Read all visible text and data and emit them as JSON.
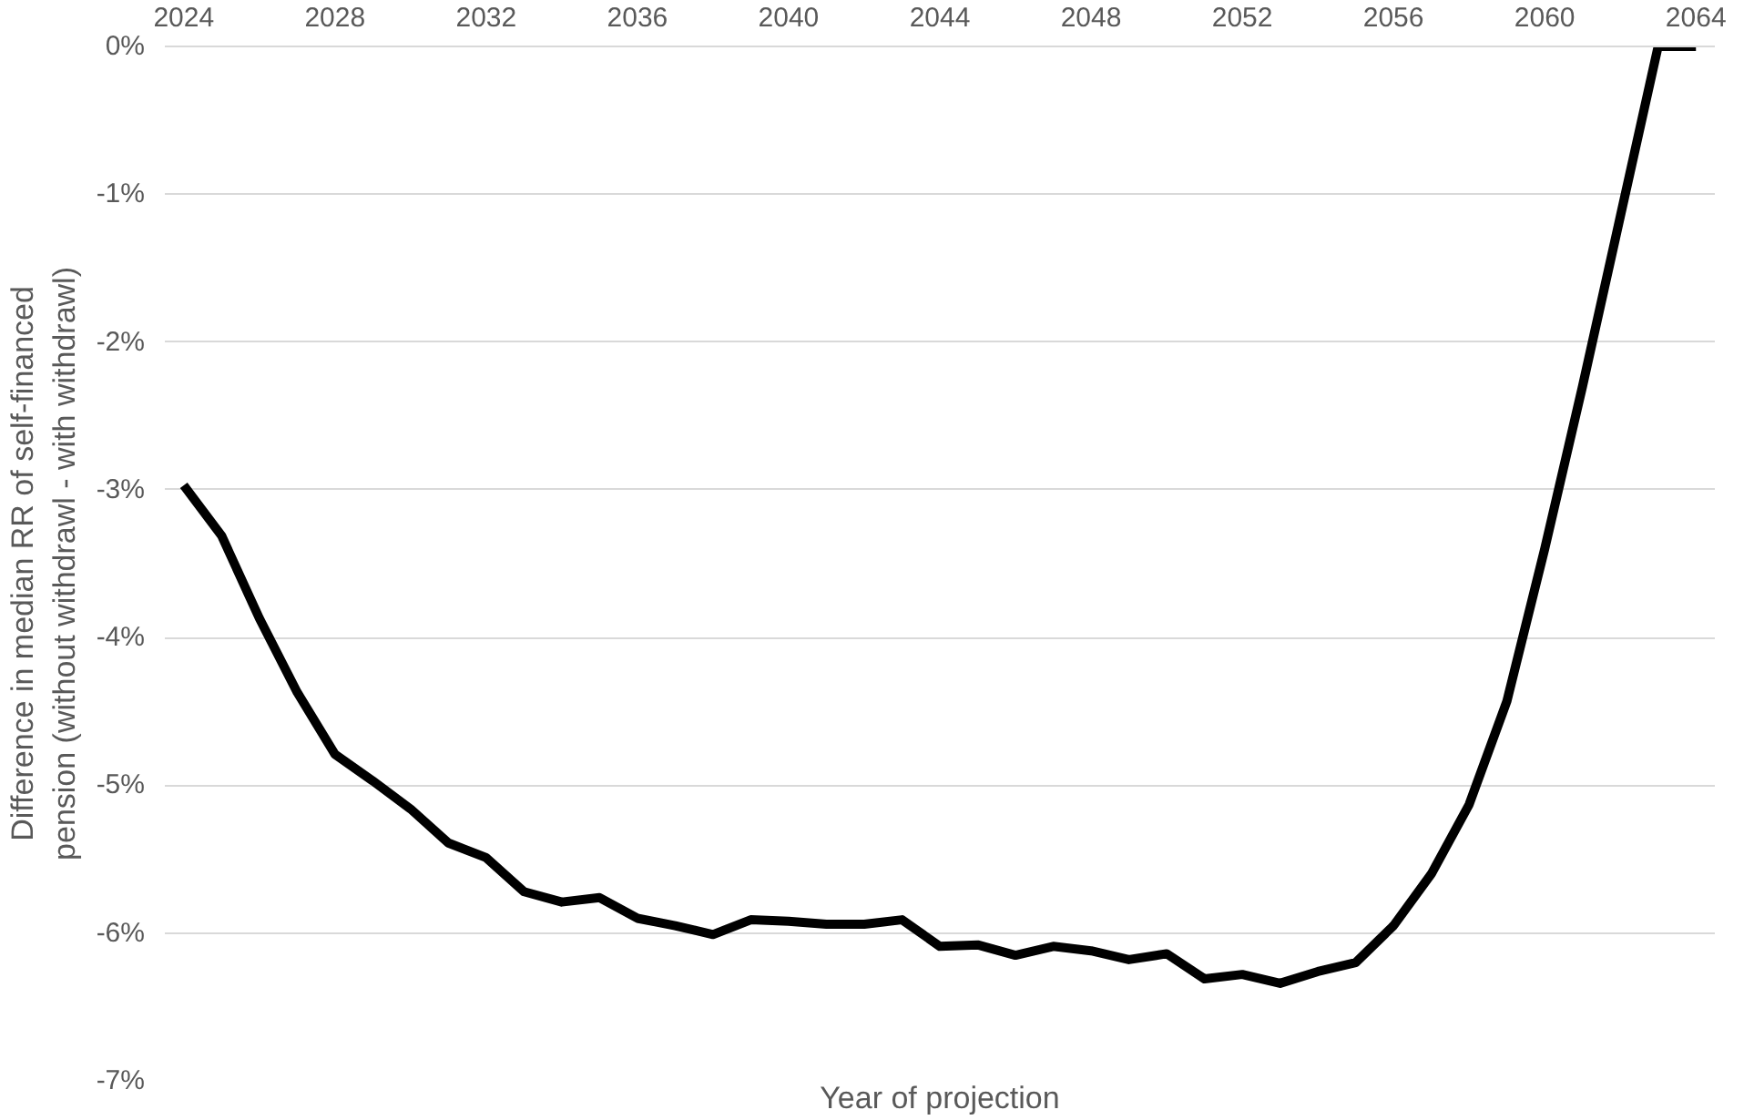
{
  "chart_data": {
    "type": "line",
    "xlabel": "Year of projection",
    "ylabel": "Difference in median RR of self-financed\npension (without withdrawl - with withdrawl)",
    "x": [
      2024,
      2025,
      2026,
      2027,
      2028,
      2029,
      2030,
      2031,
      2032,
      2033,
      2034,
      2035,
      2036,
      2037,
      2038,
      2039,
      2040,
      2041,
      2042,
      2043,
      2044,
      2045,
      2046,
      2047,
      2048,
      2049,
      2050,
      2051,
      2052,
      2053,
      2054,
      2055,
      2056,
      2057,
      2058,
      2059,
      2060,
      2061,
      2062,
      2063,
      2064
    ],
    "series": [
      {
        "color": "#000000",
        "values": [
          -2.97,
          -3.31,
          -3.87,
          -4.37,
          -4.79,
          -4.97,
          -5.16,
          -5.39,
          -5.49,
          -5.72,
          -5.79,
          -5.76,
          -5.9,
          -5.95,
          -6.01,
          -5.91,
          -5.92,
          -5.94,
          -5.94,
          -5.91,
          -6.09,
          -6.08,
          -6.15,
          -6.09,
          -6.12,
          -6.18,
          -6.14,
          -6.31,
          -6.28,
          -6.34,
          -6.26,
          -6.2,
          -5.95,
          -5.6,
          -5.13,
          -4.43,
          -3.4,
          -2.3,
          -1.15,
          0,
          0
        ]
      }
    ],
    "xlim": [
      2023.5,
      2064.5
    ],
    "xticks": [
      2024,
      2028,
      2032,
      2036,
      2040,
      2044,
      2048,
      2052,
      2056,
      2060,
      2064
    ],
    "ylim": [
      -7,
      0
    ],
    "yticks": [
      {
        "value": 0,
        "label": "0%"
      },
      {
        "value": -1,
        "label": "-1%"
      },
      {
        "value": -2,
        "label": "-2%"
      },
      {
        "value": -3,
        "label": "-3%"
      },
      {
        "value": -4,
        "label": "-4%"
      },
      {
        "value": -5,
        "label": "-5%"
      },
      {
        "value": -6,
        "label": "-6%"
      },
      {
        "value": -7,
        "label": "-7%"
      }
    ],
    "grid": "y",
    "marker": "none",
    "line_style": "solid"
  }
}
